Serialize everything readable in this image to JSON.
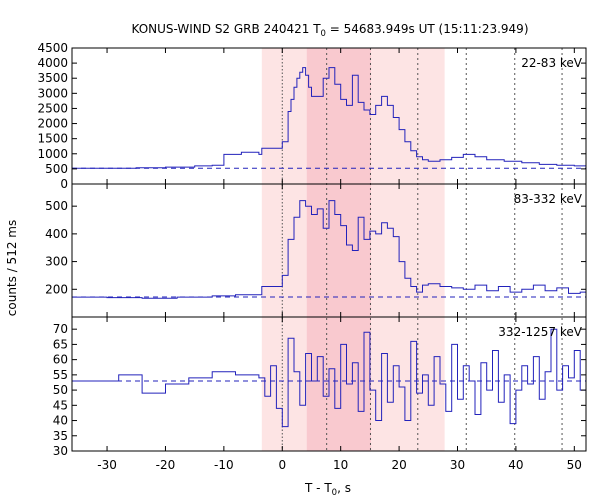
{
  "chart_data": {
    "type": "line",
    "title": "KONUS-WIND S2 GRB 240421 T",
    "title_sub": "0",
    "title_rest": " = 54683.949s UT (15:11:23.949)",
    "xlabel": "T - T",
    "xlabel_sub": "0",
    "xlabel_rest": ", s",
    "ylabel": "counts / 512 ms",
    "xlim": [
      -36,
      52
    ],
    "x_ticks": [
      -30,
      -20,
      -10,
      0,
      10,
      20,
      30,
      40,
      50
    ],
    "colors": {
      "line": "#2222bb",
      "shade_outer": "#fde4e4",
      "shade_inner": "#f9c9cf"
    },
    "shaded_intervals": [
      {
        "x0": -3.5,
        "x1": 27.8,
        "level": "outer"
      },
      {
        "x0": 4.2,
        "x1": 15.2,
        "level": "inner"
      }
    ],
    "vertical_markers": [
      0.0,
      7.6,
      15.1,
      23.2,
      31.5,
      39.8,
      47.9
    ],
    "panels": [
      {
        "band": "22-83 keV",
        "ylim": [
          0,
          4500
        ],
        "y_ticks": [
          0,
          500,
          1000,
          1500,
          2000,
          2500,
          3000,
          3500,
          4000,
          4500
        ],
        "background_level": 520,
        "coarse": [
          [
            -36,
            520
          ],
          [
            -30,
            520
          ],
          [
            -25,
            540
          ],
          [
            -20,
            560
          ],
          [
            -15,
            600
          ],
          [
            -12,
            620
          ],
          [
            -10,
            980
          ],
          [
            -7,
            1050
          ],
          [
            -4,
            980
          ],
          [
            -3.5,
            1180
          ]
        ],
        "fine_times": [
          0,
          1,
          1.5,
          2,
          2.5,
          3,
          3.5,
          4,
          4.5,
          5,
          6,
          7,
          8,
          9,
          10,
          11,
          12,
          13,
          14,
          15,
          16,
          17,
          18,
          19,
          20,
          21,
          22,
          23,
          24,
          25,
          27,
          29,
          31,
          33,
          35,
          38,
          41,
          44,
          47,
          50,
          52
        ],
        "fine_values": [
          1400,
          2400,
          2800,
          3200,
          3500,
          3700,
          3850,
          3600,
          3200,
          2900,
          2900,
          3500,
          3850,
          3300,
          2800,
          2600,
          3600,
          2700,
          2450,
          2300,
          2600,
          2900,
          2600,
          2200,
          1800,
          1400,
          1100,
          900,
          800,
          750,
          800,
          880,
          980,
          900,
          800,
          750,
          700,
          650,
          620,
          600,
          560
        ]
      },
      {
        "band": "83-332 keV",
        "ylim": [
          100,
          580
        ],
        "y_ticks": [
          200,
          300,
          400,
          500
        ],
        "background_level": 172,
        "coarse": [
          [
            -36,
            172
          ],
          [
            -30,
            170
          ],
          [
            -24,
            168
          ],
          [
            -18,
            172
          ],
          [
            -12,
            176
          ],
          [
            -8,
            180
          ],
          [
            -3.5,
            210
          ]
        ],
        "fine_times": [
          0,
          1,
          2,
          3,
          4,
          5,
          6,
          7,
          8,
          9,
          10,
          11,
          12,
          13,
          14,
          15,
          16,
          17,
          18,
          19,
          20,
          21,
          22,
          23,
          24,
          25,
          27,
          29,
          31,
          33,
          35,
          37,
          39,
          41,
          43,
          45,
          47,
          49,
          51
        ],
        "fine_values": [
          250,
          380,
          460,
          520,
          500,
          470,
          490,
          420,
          520,
          470,
          430,
          360,
          340,
          460,
          380,
          410,
          400,
          440,
          420,
          390,
          300,
          240,
          210,
          190,
          215,
          220,
          210,
          205,
          200,
          215,
          195,
          210,
          190,
          200,
          215,
          195,
          205,
          185,
          190
        ]
      },
      {
        "band": "332-1257 keV",
        "ylim": [
          30,
          74
        ],
        "y_ticks": [
          30,
          35,
          40,
          45,
          50,
          55,
          60,
          65,
          70
        ],
        "background_level": 53,
        "coarse": [
          [
            -36,
            53
          ],
          [
            -32,
            53
          ],
          [
            -28,
            55
          ],
          [
            -24,
            49
          ],
          [
            -20,
            52
          ],
          [
            -16,
            54
          ],
          [
            -12,
            56
          ],
          [
            -8,
            55
          ],
          [
            -4,
            54
          ]
        ],
        "fine_times": [
          -3,
          -2,
          -1,
          0,
          1,
          2,
          3,
          4,
          5,
          6,
          7,
          8,
          9,
          10,
          11,
          12,
          13,
          14,
          15,
          16,
          17,
          18,
          19,
          20,
          21,
          22,
          23,
          24,
          25,
          26,
          27,
          28,
          29,
          30,
          31,
          32,
          33,
          34,
          35,
          36,
          37,
          38,
          39,
          40,
          41,
          42,
          43,
          44,
          45,
          46,
          47,
          48,
          49,
          50,
          51
        ],
        "fine_values": [
          48,
          58,
          44,
          38,
          67,
          56,
          45,
          62,
          53,
          61,
          48,
          57,
          44,
          65,
          52,
          59,
          43,
          69,
          50,
          40,
          62,
          46,
          58,
          51,
          40,
          66,
          49,
          55,
          45,
          61,
          52,
          43,
          65,
          47,
          58,
          53,
          42,
          59,
          50,
          63,
          46,
          55,
          39,
          50,
          58,
          52,
          61,
          47,
          56,
          70,
          50,
          58,
          54,
          63,
          50
        ]
      }
    ]
  }
}
